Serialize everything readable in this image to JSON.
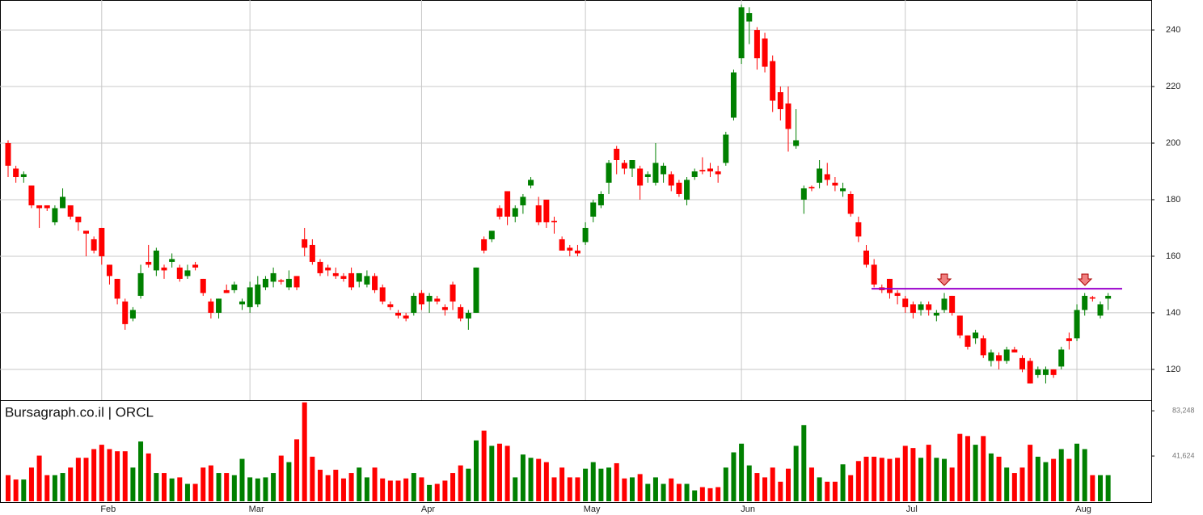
{
  "chart_data": {
    "type": "candlestick",
    "title": "Bursagraph.co.il | ORCL",
    "up_color": "#008000",
    "down_color": "#ff0000",
    "categories": [
      null,
      null,
      null,
      null,
      null,
      null,
      null,
      null,
      null,
      null,
      null,
      null,
      "Feb",
      null,
      null,
      null,
      null,
      null,
      null,
      null,
      null,
      null,
      null,
      null,
      null,
      null,
      null,
      null,
      null,
      null,
      null,
      "Mar",
      null,
      null,
      null,
      null,
      null,
      null,
      null,
      null,
      null,
      null,
      null,
      null,
      null,
      null,
      null,
      null,
      null,
      null,
      null,
      null,
      null,
      "Apr",
      null,
      null,
      null,
      null,
      null,
      null,
      null,
      null,
      null,
      null,
      null,
      null,
      null,
      null,
      null,
      null,
      null,
      null,
      null,
      null,
      "May",
      null,
      null,
      null,
      null,
      null,
      null,
      null,
      null,
      null,
      null,
      null,
      null,
      null,
      null,
      null,
      null,
      null,
      null,
      null,
      "Jun",
      null,
      null,
      null,
      null,
      null,
      null,
      null,
      null,
      null,
      null,
      null,
      null,
      null,
      null,
      null,
      null,
      null,
      null,
      null,
      null,
      "Jul",
      null,
      null,
      null,
      null,
      null,
      null,
      null,
      null,
      null,
      null,
      null,
      null,
      null,
      null,
      null,
      null,
      null,
      null,
      null,
      null,
      null,
      "Aug",
      null,
      null,
      null,
      null
    ],
    "candles": [
      [
        200,
        201,
        188,
        192
      ],
      [
        191,
        192,
        186,
        188
      ],
      [
        188,
        190,
        186,
        189
      ],
      [
        185,
        185,
        177,
        178
      ],
      [
        178,
        178,
        170,
        177
      ],
      [
        178,
        178,
        176,
        177
      ],
      [
        172,
        178,
        171,
        177
      ],
      [
        177,
        184,
        177,
        181
      ],
      [
        178,
        178,
        173,
        174
      ],
      [
        174,
        174,
        169,
        172
      ],
      [
        169,
        169,
        160,
        168
      ],
      [
        166,
        167,
        161,
        162
      ],
      [
        170,
        170,
        157,
        160
      ],
      [
        157,
        157,
        150,
        153
      ],
      [
        152,
        152,
        143,
        145
      ],
      [
        144,
        145,
        134,
        136
      ],
      [
        138,
        142,
        137,
        141
      ],
      [
        146,
        157,
        145,
        154
      ],
      [
        158,
        164,
        156,
        157
      ],
      [
        155,
        163,
        153,
        162
      ],
      [
        156,
        157,
        152,
        155
      ],
      [
        158,
        161,
        156,
        159
      ],
      [
        156,
        157,
        151,
        152
      ],
      [
        153,
        157,
        152,
        155
      ],
      [
        157,
        158,
        155,
        156
      ],
      [
        152,
        152,
        146,
        147
      ],
      [
        144,
        145,
        138,
        140
      ],
      [
        140,
        145,
        138,
        145
      ],
      [
        148,
        150,
        147,
        147
      ],
      [
        148,
        151,
        147,
        150
      ],
      [
        143,
        145,
        141,
        144
      ],
      [
        142,
        151,
        140,
        149
      ],
      [
        143,
        153,
        142,
        150
      ],
      [
        149,
        153,
        148,
        152
      ],
      [
        151,
        156,
        149,
        154
      ],
      [
        151.5,
        152,
        150,
        151
      ],
      [
        149,
        155,
        148,
        152
      ],
      [
        153,
        153,
        148,
        149
      ],
      [
        166,
        170,
        160,
        163
      ],
      [
        164,
        166,
        157,
        158
      ],
      [
        158,
        159,
        153,
        154
      ],
      [
        156,
        157,
        153,
        155
      ],
      [
        154,
        156,
        152,
        153
      ],
      [
        153,
        154,
        151,
        152
      ],
      [
        154,
        156,
        148,
        149
      ],
      [
        151,
        154,
        149,
        154
      ],
      [
        150,
        155,
        149,
        153
      ],
      [
        153,
        154,
        147,
        148
      ],
      [
        149,
        150,
        143,
        144
      ],
      [
        143,
        144,
        141,
        142
      ],
      [
        140,
        141,
        138,
        139
      ],
      [
        139,
        140,
        137,
        138
      ],
      [
        140,
        147,
        139,
        146
      ],
      [
        147,
        148,
        141,
        143
      ],
      [
        144,
        147,
        140,
        146
      ],
      [
        145,
        146,
        143,
        144
      ],
      [
        142,
        143,
        139,
        141
      ],
      [
        150,
        151,
        141,
        144
      ],
      [
        142,
        143,
        137,
        138
      ],
      [
        138,
        141,
        134,
        140
      ],
      [
        140,
        156,
        140,
        156
      ],
      [
        166,
        167,
        161,
        162
      ],
      [
        166,
        169,
        165,
        169
      ],
      [
        177,
        178,
        173,
        174
      ],
      [
        183,
        183,
        171,
        174
      ],
      [
        174,
        178,
        172,
        177
      ],
      [
        178,
        182,
        175,
        181
      ],
      [
        185,
        188,
        184,
        187
      ],
      [
        178,
        181,
        171,
        172
      ],
      [
        180,
        180,
        170,
        172
      ],
      [
        172.5,
        174,
        168,
        172
      ],
      [
        166,
        167,
        162,
        162
      ],
      [
        163,
        164,
        160,
        162
      ],
      [
        162,
        164,
        160,
        161
      ],
      [
        165,
        172,
        164,
        170
      ],
      [
        174,
        180,
        172,
        179
      ],
      [
        178,
        183,
        177,
        182
      ],
      [
        186,
        194,
        182,
        193
      ],
      [
        198,
        199,
        189,
        194
      ],
      [
        193,
        194,
        189,
        191
      ],
      [
        191,
        194,
        188,
        194
      ],
      [
        191,
        192,
        180,
        185
      ],
      [
        188,
        190,
        186,
        189
      ],
      [
        186,
        200,
        185,
        193
      ],
      [
        189,
        193,
        186,
        192
      ],
      [
        189,
        190,
        183,
        185
      ],
      [
        186,
        187,
        181,
        182
      ],
      [
        180,
        188,
        178,
        187
      ],
      [
        188,
        191,
        187,
        190
      ],
      [
        190.5,
        195,
        189,
        190
      ],
      [
        191,
        193,
        188,
        190
      ],
      [
        190,
        192,
        186,
        189
      ],
      [
        193,
        204,
        192,
        203
      ],
      [
        209,
        226,
        208,
        225
      ],
      [
        230,
        249,
        228,
        248
      ],
      [
        243,
        248,
        235,
        246
      ],
      [
        240,
        241,
        226,
        230
      ],
      [
        237,
        239,
        225,
        227
      ],
      [
        229,
        231,
        211,
        215
      ],
      [
        218,
        220,
        208,
        212
      ],
      [
        214,
        220,
        197,
        205
      ],
      [
        199,
        212,
        198,
        201
      ],
      [
        180,
        185,
        175,
        184
      ],
      [
        184.5,
        185,
        183,
        184
      ],
      [
        186,
        194,
        184,
        191
      ],
      [
        189,
        193,
        185,
        187
      ],
      [
        186,
        188,
        183,
        185
      ],
      [
        183,
        186,
        181,
        184
      ],
      [
        182,
        183,
        174,
        175
      ],
      [
        172,
        174,
        165,
        167
      ],
      [
        162,
        164,
        156,
        157
      ],
      [
        157,
        159,
        149,
        150
      ],
      [
        149,
        150,
        147,
        148
      ],
      [
        152,
        152,
        145,
        147
      ],
      [
        147,
        148,
        143,
        146
      ],
      [
        145,
        146,
        140,
        142
      ],
      [
        143,
        144,
        138,
        140
      ],
      [
        141,
        144,
        139,
        143
      ],
      [
        143,
        144,
        139,
        141
      ],
      [
        139,
        141,
        137,
        140
      ],
      [
        141,
        147,
        140,
        145
      ],
      [
        146,
        146,
        139,
        140
      ],
      [
        139,
        139,
        131,
        132
      ],
      [
        132,
        132,
        127,
        128
      ],
      [
        131,
        134,
        129,
        133
      ],
      [
        131,
        132,
        124,
        125
      ],
      [
        123,
        127,
        121,
        126
      ],
      [
        125,
        126,
        120,
        123
      ],
      [
        123,
        128,
        122,
        127
      ],
      [
        127,
        128,
        126,
        126
      ],
      [
        124,
        125,
        119,
        120
      ],
      [
        123,
        124,
        115,
        115
      ],
      [
        118,
        121,
        117,
        120
      ],
      [
        118,
        121,
        115,
        120
      ],
      [
        120,
        120,
        117,
        118
      ],
      [
        121,
        128,
        120,
        127
      ],
      [
        131,
        133,
        127,
        130
      ],
      [
        131,
        143,
        130,
        141
      ],
      [
        141,
        147,
        139,
        146
      ],
      [
        145.5,
        146,
        144,
        145
      ],
      [
        139,
        144,
        138,
        143
      ],
      [
        145,
        147,
        141,
        146
      ]
    ],
    "volume": [
      24000,
      20000,
      20000,
      31000,
      42000,
      24000,
      24000,
      26000,
      31000,
      40000,
      40000,
      48000,
      52000,
      48000,
      46000,
      46000,
      31000,
      55000,
      44000,
      26000,
      26000,
      21000,
      22000,
      16000,
      16000,
      31000,
      33000,
      26000,
      26000,
      24000,
      39000,
      22000,
      21000,
      22000,
      26000,
      42000,
      36000,
      57000,
      91000,
      41000,
      29000,
      24000,
      29000,
      21000,
      26000,
      31000,
      22000,
      31000,
      21000,
      19000,
      19000,
      21000,
      26000,
      22000,
      15000,
      16000,
      19000,
      26000,
      33000,
      30000,
      56000,
      65000,
      51000,
      53000,
      51000,
      22000,
      43000,
      40000,
      39000,
      36000,
      22000,
      31000,
      22000,
      22000,
      30000,
      36000,
      30000,
      31000,
      35000,
      21000,
      22000,
      25000,
      16000,
      22000,
      16000,
      21000,
      16000,
      16000,
      10000,
      13000,
      12000,
      13000,
      31000,
      45000,
      53000,
      33000,
      26000,
      22000,
      31000,
      18000,
      30000,
      51000,
      70000,
      31000,
      22000,
      18000,
      18000,
      34000,
      24000,
      37000,
      41000,
      41000,
      40000,
      39000,
      40000,
      51000,
      49000,
      40000,
      52000,
      40000,
      39000,
      31000,
      62000,
      60000,
      52000,
      60000,
      44000,
      41000,
      31000,
      26000,
      31000,
      52000,
      41000,
      36000,
      39000,
      48000,
      39000,
      53000,
      48000,
      24000,
      24000,
      24000
    ],
    "ylim": [
      109.1,
      250.6
    ],
    "yticks": [
      120,
      140,
      160,
      180,
      200,
      220,
      240
    ],
    "vlim": [
      0,
      93000
    ],
    "vticks": [
      {
        "value": 41624,
        "label": "41,624"
      },
      {
        "value": 83248,
        "label": "83,248"
      }
    ],
    "resistance": {
      "value": 148.5,
      "color": "#9900cc"
    },
    "grid": true
  }
}
